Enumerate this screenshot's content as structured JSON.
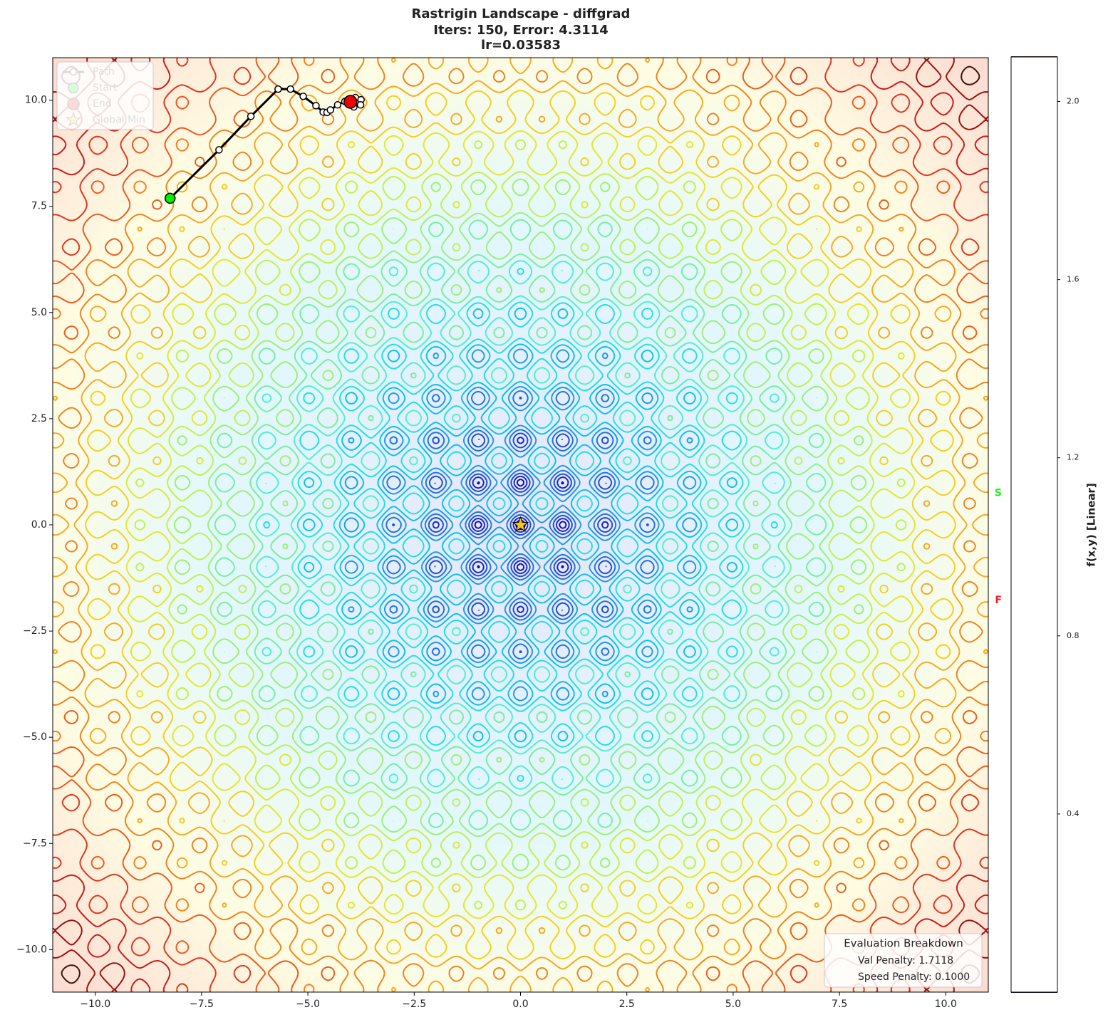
{
  "chart_data": {
    "type": "contour",
    "title": [
      "Rastrigin Landscape - diffgrad",
      "Iters: 150, Error: 4.3114",
      "lr=0.03583"
    ],
    "xlim": [
      -11,
      11
    ],
    "ylim": [
      -11,
      11
    ],
    "xticks": [
      {
        "value": -10,
        "label": "−10.0"
      },
      {
        "value": -7.5,
        "label": "−7.5"
      },
      {
        "value": -5,
        "label": "−5.0"
      },
      {
        "value": -2.5,
        "label": "−2.5"
      },
      {
        "value": 0,
        "label": "0.0"
      },
      2.5,
      {
        "value": 5,
        "label": "5.0"
      },
      7.5,
      {
        "value": 10,
        "label": "10.0"
      }
    ],
    "yticks": [
      {
        "value": -10,
        "label": "−10.0"
      },
      {
        "value": -7.5,
        "label": "−7.5"
      },
      {
        "value": -5,
        "label": "−5.0"
      },
      {
        "value": -2.5,
        "label": "−2.5"
      },
      {
        "value": 0,
        "label": "0.0"
      },
      2.5,
      {
        "value": 5,
        "label": "5.0"
      },
      7.5,
      {
        "value": 10,
        "label": "10.0"
      }
    ],
    "path": {
      "name": "Path",
      "color": "#000000",
      "x": [
        -8.24,
        -7.09,
        -6.34,
        -5.7,
        -5.41,
        -5.11,
        -4.81,
        -4.64,
        -4.55,
        -4.47,
        -4.3,
        -4.13,
        -4.05,
        -3.88,
        -3.75,
        -3.76,
        -3.92,
        -4.0
      ],
      "y": [
        7.69,
        8.83,
        9.62,
        10.26,
        10.26,
        10.09,
        9.87,
        9.72,
        9.71,
        9.77,
        9.89,
        9.97,
        10.01,
        10.06,
        10.01,
        9.89,
        9.84,
        9.96
      ]
    },
    "start": {
      "name": "Start",
      "color": "#00ee00",
      "x": -8.24,
      "y": 7.69
    },
    "end": {
      "name": "End",
      "color": "#ee0000",
      "x": -4.0,
      "y": 9.96
    },
    "global_min": {
      "name": "Global Min",
      "color": "#f5c518",
      "x": 0,
      "y": 0
    },
    "colorbar": {
      "label": "f(x,y) [Linear]",
      "lim": [
        0,
        2.1
      ],
      "ticks": [
        0.4,
        0.8,
        1.2,
        1.6,
        {
          "value": 2.0,
          "label": "2.0"
        }
      ],
      "levels": [
        0,
        0.1,
        0.2,
        0.3,
        0.4,
        0.5,
        0.6,
        0.7,
        0.8,
        0.9,
        1.0,
        1.1,
        1.2,
        1.3,
        1.4,
        1.5,
        1.6,
        1.7,
        1.8,
        1.9,
        2.0,
        2.1
      ],
      "colormap": [
        "#000040",
        "#00008b",
        "#1010c0",
        "#1a40d0",
        "#1e70e0",
        "#1aa0f0",
        "#00d0f0",
        "#40f0e0",
        "#70f0a0",
        "#a0f070",
        "#d0f040",
        "#f0e020",
        "#f8b020",
        "#f08020",
        "#e85020",
        "#d82020",
        "#b01010",
        "#3a1010"
      ],
      "markers": [
        {
          "label": "S",
          "value": 1.12,
          "color": "#22ee22"
        },
        {
          "label": "F",
          "value": 0.88,
          "color": "#ee2222"
        }
      ]
    },
    "annotation": {
      "title": "Evaluation Breakdown",
      "lines": [
        "Val Penalty: 1.7118",
        "Speed Penalty: 0.1000"
      ]
    }
  }
}
